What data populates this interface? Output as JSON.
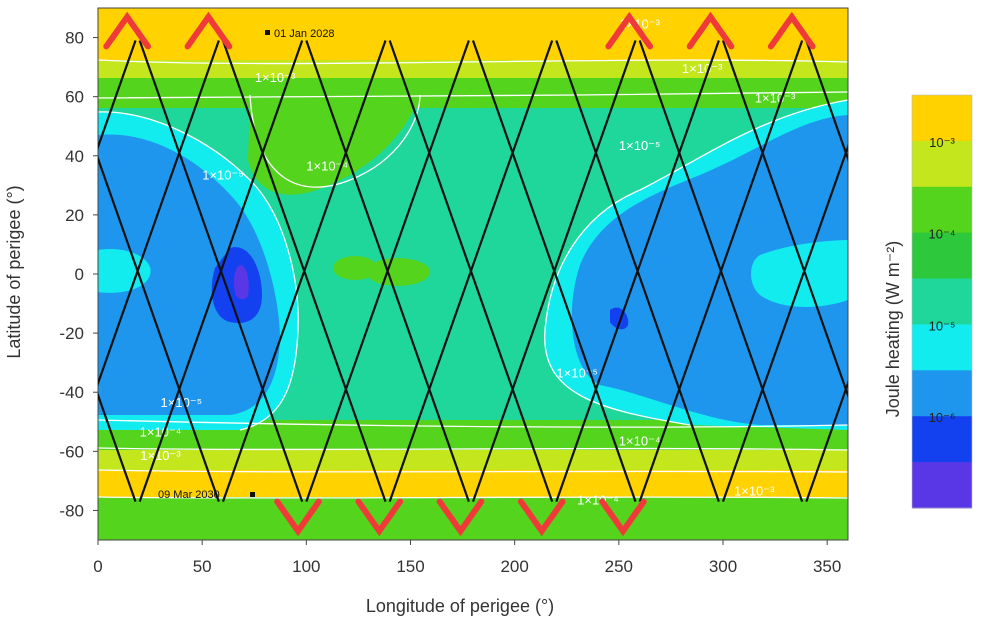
{
  "chart_data": {
    "type": "heatmap",
    "title": "",
    "xlabel": "Longitude of perigee (°)",
    "ylabel": "Latitude of perigee (°)",
    "xlim": [
      0,
      360
    ],
    "ylim": [
      -90,
      90
    ],
    "xticks": [
      0,
      50,
      100,
      150,
      200,
      250,
      300,
      350
    ],
    "yticks": [
      -80,
      -60,
      -40,
      -20,
      0,
      20,
      40,
      60,
      80
    ],
    "grid": false,
    "colorbar": {
      "label": "Joule heating (W m⁻²)",
      "tick_labels": [
        "10⁻³",
        "10⁻⁴",
        "10⁻⁵",
        "10⁻⁶"
      ],
      "tick_exponents": [
        -3,
        -4,
        -5,
        -6
      ],
      "bands": [
        {
          "color": "#ffd200"
        },
        {
          "color": "#c4e61c"
        },
        {
          "color": "#55d41e"
        },
        {
          "color": "#2ec83c"
        },
        {
          "color": "#20d79b"
        },
        {
          "color": "#12ecef"
        },
        {
          "color": "#1e96ee"
        },
        {
          "color": "#1441f0"
        },
        {
          "color": "#5a37e6"
        }
      ]
    },
    "field_colors": {
      "yellow": "#ffd200",
      "yellow_green": "#c4e61c",
      "green": "#55d41e",
      "teal": "#20d79b",
      "cyan": "#12ecef",
      "blue": "#1e96ee",
      "dark_blue": "#1441f0",
      "violet": "#5a37e6"
    },
    "contour_labels": [
      {
        "text": "1×10⁻³",
        "lon": 85,
        "lat": 65
      },
      {
        "text": "1×10⁻³",
        "lon": 290,
        "lat": 68
      },
      {
        "text": "1×10⁻³",
        "lon": 325,
        "lat": 58
      },
      {
        "text": "1×10⁻³",
        "lon": 260,
        "lat": 83
      },
      {
        "text": "1×10⁻⁴",
        "lon": 110,
        "lat": 35
      },
      {
        "text": "1×10⁻⁵",
        "lon": 260,
        "lat": 42
      },
      {
        "text": "1×10⁻⁵",
        "lon": 60,
        "lat": 32
      },
      {
        "text": "1×10⁻⁵",
        "lon": 230,
        "lat": -35
      },
      {
        "text": "1×10⁻⁵",
        "lon": 40,
        "lat": -45
      },
      {
        "text": "1×10⁻⁴",
        "lon": 30,
        "lat": -55
      },
      {
        "text": "1×10⁻⁴",
        "lon": 260,
        "lat": -58
      },
      {
        "text": "1×10⁻³",
        "lon": 30,
        "lat": -63
      },
      {
        "text": "1×10⁻³",
        "lon": 315,
        "lat": -75
      },
      {
        "text": "1×10⁻⁴",
        "lon": 240,
        "lat": -78
      }
    ],
    "track": {
      "start_label": "01 Jan 2028",
      "start": {
        "lon": 80,
        "lat": 79
      },
      "end_label": "09 Mar 2030",
      "end": {
        "lon": 75,
        "lat": -75
      },
      "color": "#111111",
      "highlight_color": "#f03a3a"
    }
  }
}
